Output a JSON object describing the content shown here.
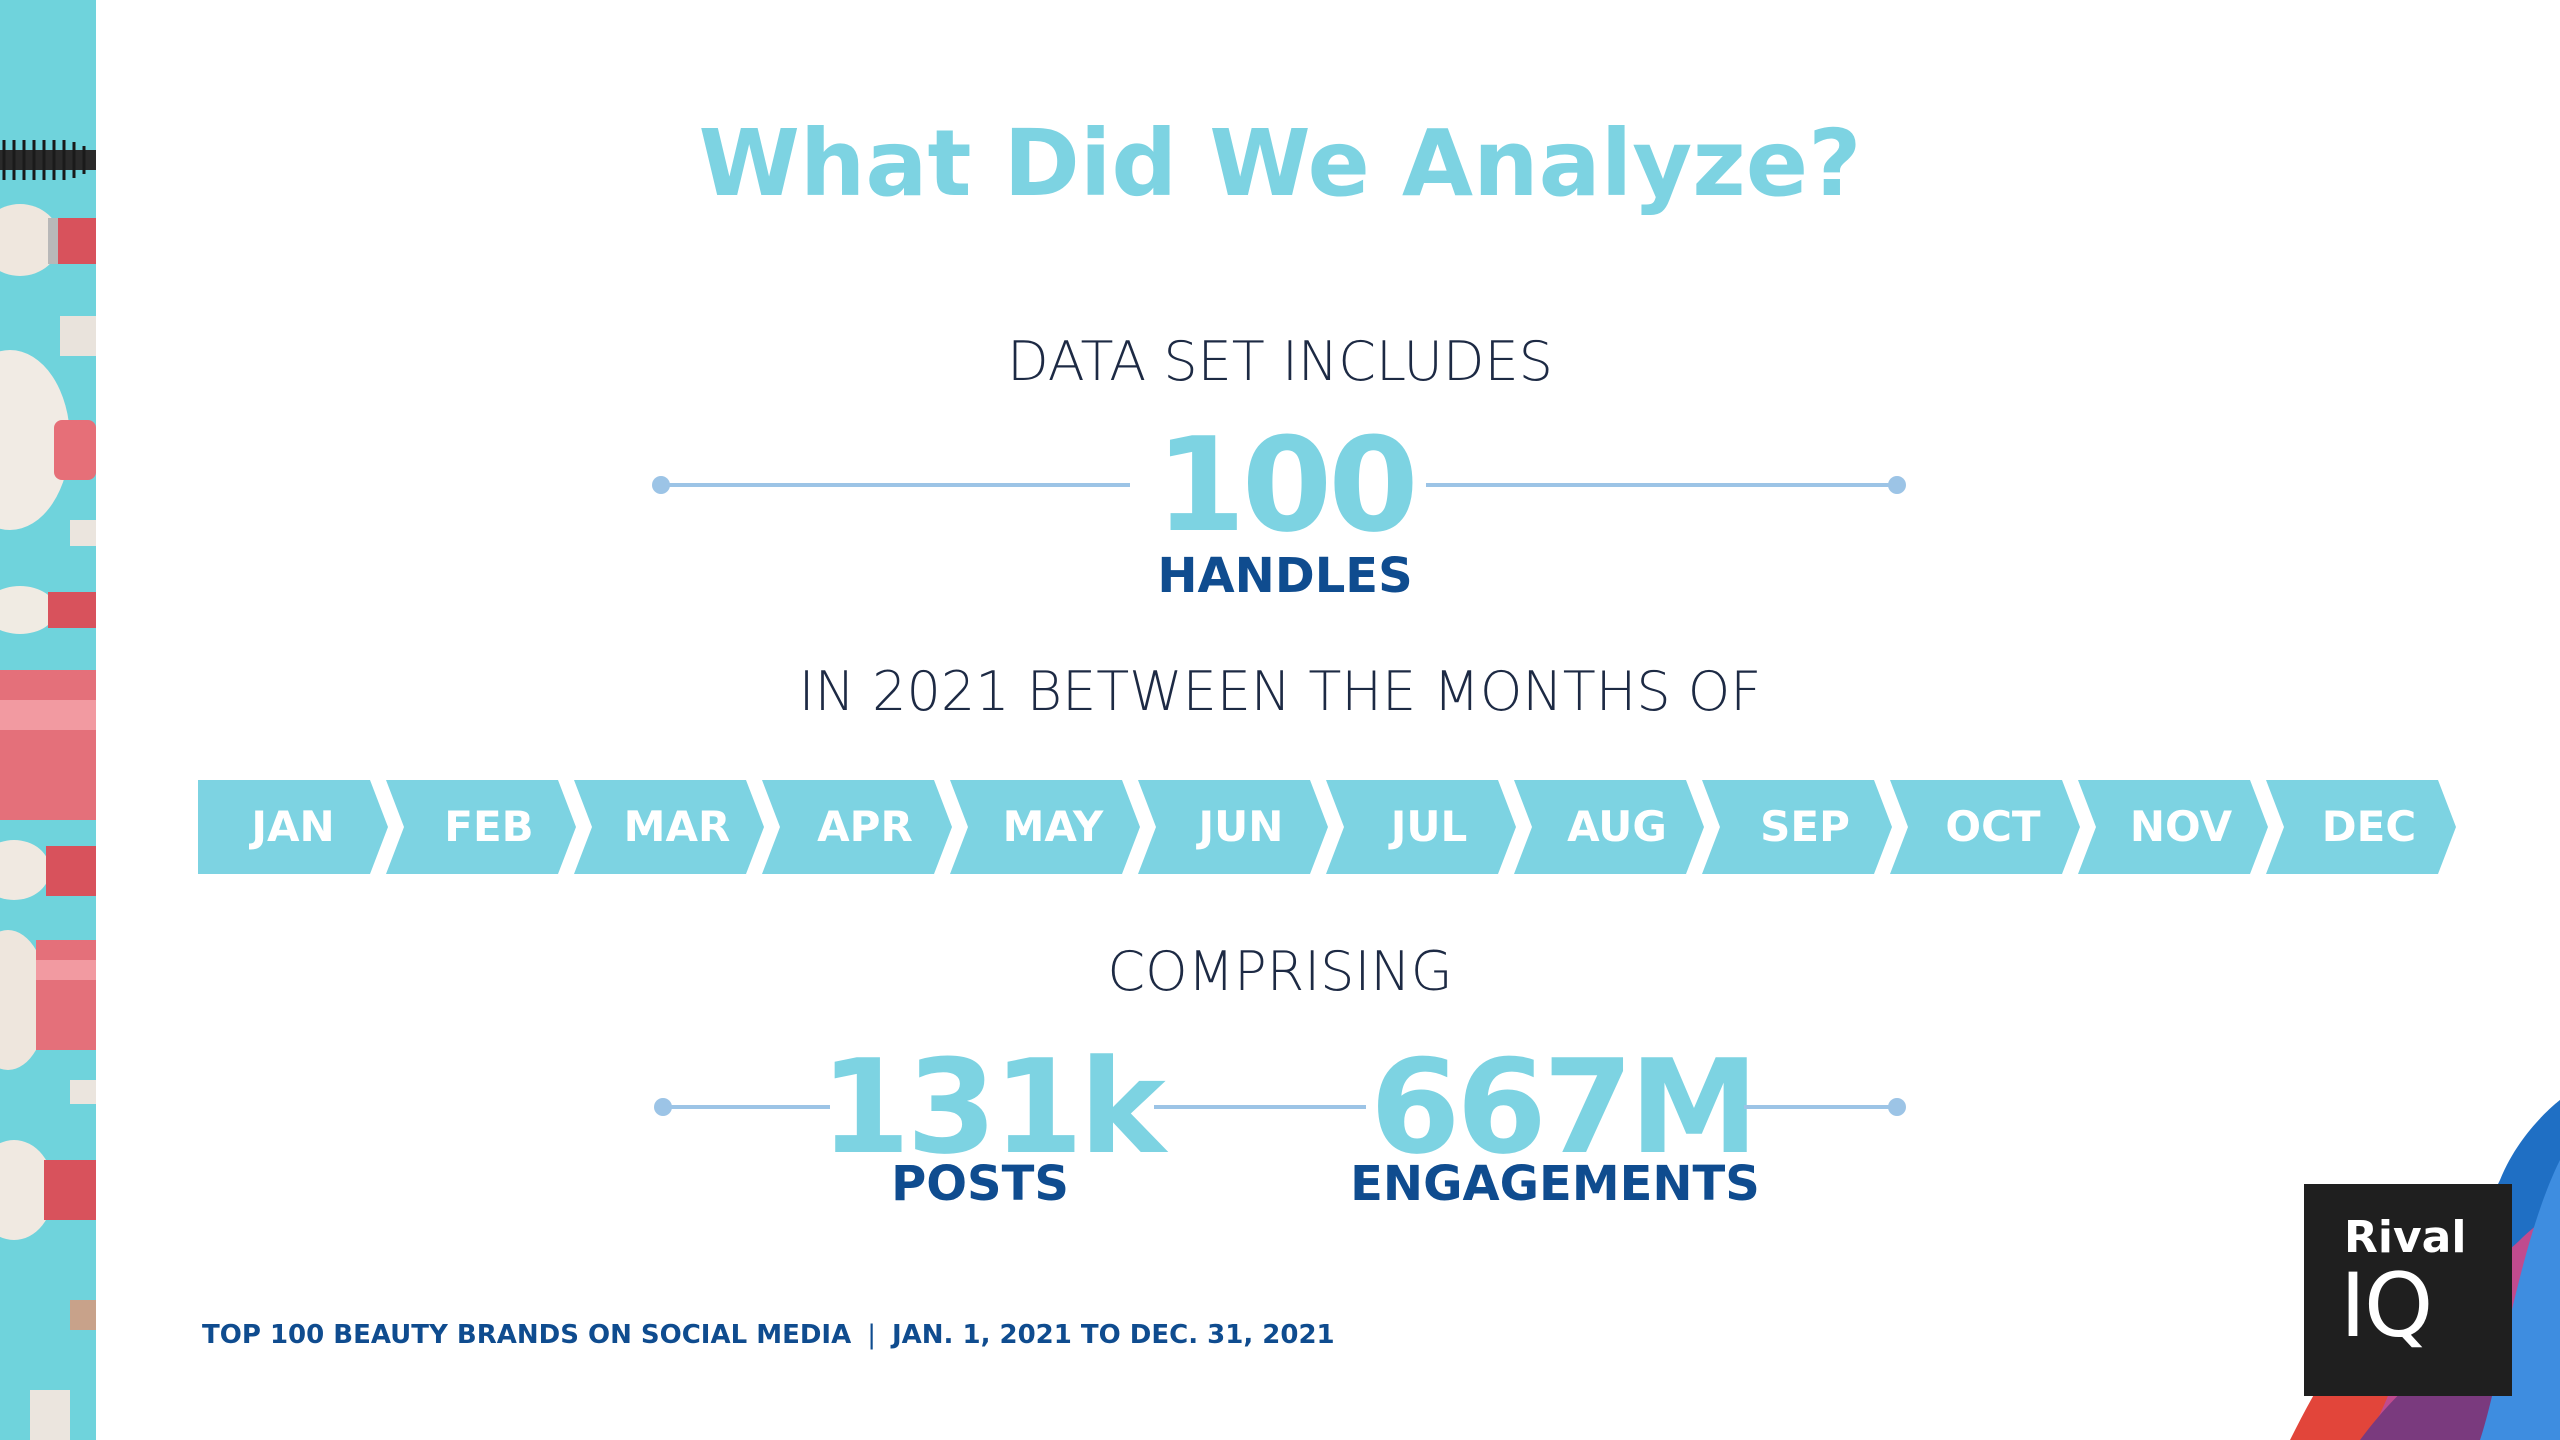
{
  "slide": {
    "title": "What Did We Analyze?",
    "data_set_label": "DATA SET INCLUDES",
    "handles": {
      "value": "100",
      "label": "HANDLES"
    },
    "period_label": "IN 2021 BETWEEN THE MONTHS OF",
    "months": [
      "JAN",
      "FEB",
      "MAR",
      "APR",
      "MAY",
      "JUN",
      "JUL",
      "AUG",
      "SEP",
      "OCT",
      "NOV",
      "DEC"
    ],
    "comprising_label": "COMPRISING",
    "posts": {
      "value": "131k",
      "label": "POSTS"
    },
    "engagements": {
      "value": "667M",
      "label": "ENGAGEMENTS"
    },
    "footer": {
      "report": "TOP 100 BEAUTY BRANDS ON SOCIAL MEDIA",
      "separator": "|",
      "dates": "JAN. 1, 2021 TO DEC. 31, 2021"
    },
    "logo": {
      "line1": "Rival",
      "line2": "IQ"
    }
  },
  "colors": {
    "accent": "#7dd3e2",
    "navy": "#0f4c8f",
    "dark_text": "#1d2a44",
    "connector": "#9cc4e6",
    "logo_bg": "#1f1f1f"
  },
  "icons": {
    "left_decoration": "makeup-brushes-photo",
    "corner_decoration": "colored-wave-shapes"
  }
}
